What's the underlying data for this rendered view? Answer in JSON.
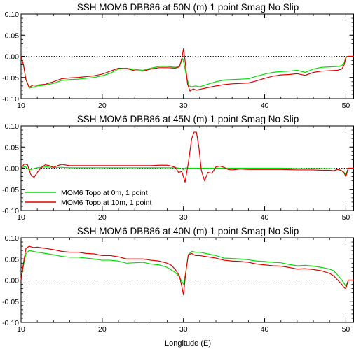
{
  "colors": {
    "green": "#00e000",
    "red": "#e00000",
    "axis": "#000000",
    "background": "#ffffff"
  },
  "chart_data": [
    {
      "type": "line",
      "title": "SSH MOM6 DBB86 at 50N (m) 1 point Smag No Slip",
      "xlabel": "",
      "xlim": [
        10,
        51
      ],
      "ylim": [
        -0.1,
        0.1
      ],
      "xticks": [
        "10",
        "20",
        "30",
        "40",
        "50"
      ],
      "yticks": [
        "0.10",
        "0.05",
        "0.00",
        "-0.05",
        "-0.10"
      ],
      "zero_line": "dotted",
      "legend": null,
      "series": [
        {
          "name": "MOM6 Topo at 0m, 1 point",
          "color": "#00e000",
          "x": [
            10,
            10.3,
            10.6,
            11,
            11.5,
            12,
            13,
            14,
            15,
            16,
            17,
            18,
            19,
            20,
            21,
            22,
            23,
            24,
            25,
            26,
            27,
            28,
            29,
            29.5,
            29.9,
            30.1,
            30.4,
            30.7,
            31,
            31.5,
            32,
            33,
            34,
            35,
            36,
            37,
            38,
            39,
            40,
            41,
            42,
            43,
            44,
            45,
            46,
            47,
            48,
            49,
            49.5,
            49.8,
            50,
            50.3,
            51
          ],
          "y": [
            0,
            -0.02,
            -0.055,
            -0.075,
            -0.073,
            -0.07,
            -0.068,
            -0.064,
            -0.057,
            -0.055,
            -0.054,
            -0.052,
            -0.05,
            -0.046,
            -0.04,
            -0.03,
            -0.028,
            -0.031,
            -0.033,
            -0.028,
            -0.024,
            -0.024,
            -0.026,
            -0.024,
            -0.005,
            -0.02,
            -0.05,
            -0.07,
            -0.072,
            -0.07,
            -0.072,
            -0.066,
            -0.06,
            -0.056,
            -0.055,
            -0.054,
            -0.053,
            -0.047,
            -0.042,
            -0.038,
            -0.036,
            -0.035,
            -0.033,
            -0.038,
            -0.03,
            -0.026,
            -0.025,
            -0.024,
            -0.022,
            -0.015,
            -0.002,
            0.0,
            0.0
          ]
        },
        {
          "name": "MOM6 Topo at 10m, 1 point",
          "color": "#e00000",
          "x": [
            10,
            10.3,
            10.6,
            11,
            11.5,
            12,
            13,
            14,
            15,
            16,
            17,
            18,
            19,
            20,
            21,
            22,
            23,
            24,
            25,
            26,
            27,
            28,
            29,
            29.5,
            29.8,
            30.0,
            30.2,
            30.5,
            30.8,
            31.2,
            31.6,
            32,
            33,
            34,
            35,
            36,
            37,
            38,
            39,
            40,
            41,
            42,
            43,
            44,
            45,
            46,
            47,
            48,
            49,
            49.5,
            49.8,
            50,
            50.3,
            51
          ],
          "y": [
            0,
            -0.02,
            -0.055,
            -0.073,
            -0.068,
            -0.068,
            -0.066,
            -0.06,
            -0.053,
            -0.051,
            -0.05,
            -0.048,
            -0.046,
            -0.042,
            -0.035,
            -0.028,
            -0.029,
            -0.034,
            -0.035,
            -0.03,
            -0.027,
            -0.027,
            -0.028,
            -0.025,
            -0.005,
            0.018,
            -0.01,
            -0.065,
            -0.082,
            -0.077,
            -0.08,
            -0.078,
            -0.074,
            -0.07,
            -0.067,
            -0.065,
            -0.064,
            -0.063,
            -0.058,
            -0.052,
            -0.047,
            -0.044,
            -0.043,
            -0.041,
            -0.045,
            -0.038,
            -0.035,
            -0.034,
            -0.033,
            -0.03,
            -0.02,
            -0.003,
            0.0,
            0.0
          ]
        }
      ]
    },
    {
      "type": "line",
      "title": "SSH MOM6 DBB86 at 45N (m) 1 point Smag No Slip",
      "xlabel": "",
      "xlim": [
        10,
        51
      ],
      "ylim": [
        -0.1,
        0.1
      ],
      "xticks": [
        "10",
        "20",
        "30",
        "40",
        "50"
      ],
      "yticks": [
        "0.10",
        "0.05",
        "0.00",
        "-0.05",
        "-0.10"
      ],
      "zero_line": "dotted",
      "legend": {
        "position": "bottom-left",
        "entries": [
          "MOM6 Topo at 0m, 1 point",
          "MOM6 Topo at 10m, 1 point"
        ]
      },
      "series": [
        {
          "name": "MOM6 Topo at 0m, 1 point",
          "color": "#00e000",
          "x": [
            10,
            10.5,
            11,
            12,
            13,
            14,
            15,
            16,
            18,
            20,
            22,
            24,
            26,
            28,
            29,
            29.5,
            30,
            30.3,
            30.7,
            31,
            32,
            33,
            34,
            35,
            36,
            38,
            40,
            42,
            44,
            46,
            48,
            49,
            49.7,
            50,
            50.3,
            51
          ],
          "y": [
            0,
            0.004,
            -0.004,
            0.001,
            0.003,
            0.002,
            0.002,
            0.001,
            0.001,
            0.001,
            0.001,
            0.001,
            0.001,
            0.001,
            0.001,
            0.0,
            -0.003,
            0.001,
            0.0,
            0.0,
            0.0,
            0.0,
            0.0,
            0.0,
            0.0,
            0.0,
            0.0,
            0.0,
            -0.001,
            -0.001,
            -0.001,
            -0.002,
            -0.008,
            -0.015,
            0.0,
            0.0
          ]
        },
        {
          "name": "MOM6 Topo at 10m, 1 point",
          "color": "#e00000",
          "x": [
            10,
            10.4,
            10.8,
            11.2,
            11.6,
            12,
            12.5,
            13,
            13.5,
            14,
            14.5,
            15,
            16,
            18,
            20,
            22,
            24,
            26,
            27,
            28,
            28.5,
            29,
            29.4,
            29.8,
            30.2,
            30.6,
            31.0,
            31.3,
            31.6,
            31.9,
            32.2,
            32.6,
            33.0,
            33.5,
            34.0,
            34.5,
            35.0,
            35.5,
            36,
            37,
            38,
            40,
            42,
            44,
            46,
            47,
            48,
            48.5,
            49,
            49.5,
            49.8,
            50,
            50.3,
            51
          ],
          "y": [
            0,
            0.01,
            0.008,
            -0.015,
            -0.022,
            -0.01,
            0.002,
            0.008,
            0.006,
            0.002,
            0.006,
            0.009,
            0.006,
            0.006,
            0.006,
            0.006,
            0.006,
            0.006,
            0.007,
            0.007,
            0.005,
            0.002,
            -0.01,
            -0.008,
            -0.033,
            0.012,
            0.068,
            0.085,
            0.085,
            0.05,
            -0.005,
            -0.03,
            -0.01,
            -0.012,
            0.003,
            0.005,
            0.002,
            -0.003,
            -0.004,
            -0.002,
            -0.003,
            -0.003,
            -0.003,
            -0.004,
            -0.004,
            -0.005,
            -0.005,
            -0.006,
            -0.003,
            -0.006,
            -0.012,
            -0.02,
            0.0,
            0.0
          ]
        }
      ]
    },
    {
      "type": "line",
      "title": "SSH MOM6 DBB86 at 40N (m) 1 point Smag No Slip",
      "xlabel": "Longitude (E)",
      "xlim": [
        10,
        51
      ],
      "ylim": [
        -0.1,
        0.1
      ],
      "xticks": [
        "10",
        "20",
        "30",
        "40",
        "50"
      ],
      "yticks": [
        "0.10",
        "0.05",
        "0.00",
        "-0.05",
        "-0.10"
      ],
      "zero_line": "dotted",
      "legend": null,
      "series": [
        {
          "name": "MOM6 Topo at 0m, 1 point",
          "color": "#00e000",
          "x": [
            10,
            10.3,
            10.6,
            11,
            11.5,
            12,
            13,
            14,
            15,
            16,
            17,
            18,
            19,
            20,
            21,
            22,
            23,
            24,
            25,
            26,
            27,
            28,
            28.5,
            29,
            29.5,
            30,
            30.3,
            30.6,
            31,
            31.5,
            32,
            33,
            34,
            35,
            36,
            37,
            38,
            39,
            40,
            41,
            42,
            43,
            44,
            45,
            46,
            47,
            48,
            48.5,
            49,
            49.5,
            49.8,
            50,
            50.3,
            51
          ],
          "y": [
            0,
            0.035,
            0.062,
            0.07,
            0.068,
            0.066,
            0.063,
            0.06,
            0.056,
            0.054,
            0.054,
            0.052,
            0.05,
            0.047,
            0.047,
            0.045,
            0.04,
            0.041,
            0.042,
            0.038,
            0.036,
            0.03,
            0.024,
            0.018,
            0.008,
            -0.01,
            0.02,
            0.06,
            0.068,
            0.066,
            0.066,
            0.062,
            0.058,
            0.052,
            0.051,
            0.05,
            0.048,
            0.045,
            0.044,
            0.042,
            0.041,
            0.037,
            0.034,
            0.035,
            0.033,
            0.03,
            0.026,
            0.022,
            0.012,
            0.0,
            -0.008,
            -0.015,
            0.0,
            0.0
          ]
        },
        {
          "name": "MOM6 Topo at 10m, 1 point",
          "color": "#e00000",
          "x": [
            10,
            10.3,
            10.6,
            11,
            11.5,
            12,
            13,
            14,
            15,
            16,
            17,
            18,
            19,
            20,
            21,
            22,
            23,
            24,
            25,
            26,
            27,
            28,
            28.5,
            29,
            29.5,
            29.8,
            30,
            30.3,
            30.6,
            31,
            31.5,
            32,
            33,
            34,
            35,
            36,
            37,
            38,
            39,
            40,
            41,
            42,
            43,
            44,
            45,
            46,
            47,
            48,
            48.5,
            49,
            49.5,
            49.8,
            50,
            50.3,
            51
          ],
          "y": [
            0,
            0.04,
            0.075,
            0.08,
            0.077,
            0.078,
            0.075,
            0.072,
            0.068,
            0.066,
            0.066,
            0.063,
            0.062,
            0.058,
            0.058,
            0.055,
            0.05,
            0.05,
            0.05,
            0.047,
            0.045,
            0.04,
            0.035,
            0.025,
            0.01,
            -0.015,
            -0.035,
            0.02,
            0.06,
            0.063,
            0.058,
            0.058,
            0.055,
            0.052,
            0.047,
            0.045,
            0.044,
            0.042,
            0.038,
            0.036,
            0.034,
            0.033,
            0.03,
            0.026,
            0.027,
            0.025,
            0.022,
            0.016,
            0.01,
            0.0,
            -0.01,
            -0.018,
            -0.02,
            0.0,
            0.0
          ]
        }
      ]
    }
  ]
}
